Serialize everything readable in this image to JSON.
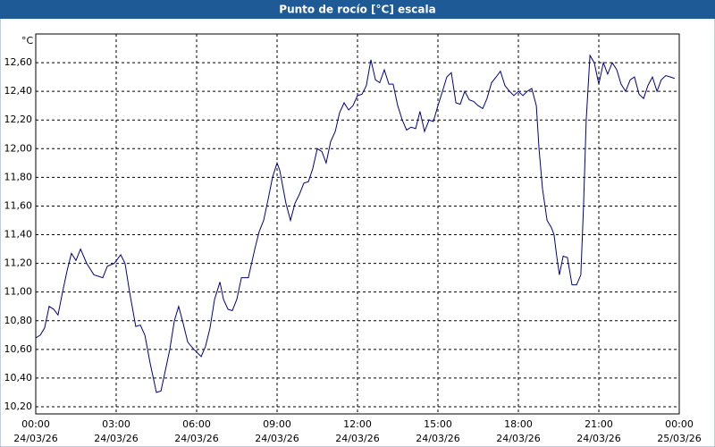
{
  "chart_data": {
    "type": "line",
    "title": "Punto de rocío [°C] escala",
    "y_unit": "°C",
    "xlim": [
      0,
      24
    ],
    "ylim": [
      10.15,
      12.8
    ],
    "grid": true,
    "xticks": [
      {
        "value": 0,
        "label": "00:00",
        "date": "24/03/26"
      },
      {
        "value": 3,
        "label": "03:00",
        "date": "24/03/26"
      },
      {
        "value": 6,
        "label": "06:00",
        "date": "24/03/26"
      },
      {
        "value": 9,
        "label": "09:00",
        "date": "24/03/26"
      },
      {
        "value": 12,
        "label": "12:00",
        "date": "24/03/26"
      },
      {
        "value": 15,
        "label": "15:00",
        "date": "24/03/26"
      },
      {
        "value": 18,
        "label": "18:00",
        "date": "24/03/26"
      },
      {
        "value": 21,
        "label": "21:00",
        "date": "24/03/26"
      },
      {
        "value": 24,
        "label": "00:00",
        "date": "25/03/26"
      }
    ],
    "yticks": [
      {
        "value": 10.2,
        "label": "10,20"
      },
      {
        "value": 10.4,
        "label": "10,40"
      },
      {
        "value": 10.6,
        "label": "10,60"
      },
      {
        "value": 10.8,
        "label": "10,80"
      },
      {
        "value": 11.0,
        "label": "11,00"
      },
      {
        "value": 11.2,
        "label": "11,20"
      },
      {
        "value": 11.4,
        "label": "11,40"
      },
      {
        "value": 11.6,
        "label": "11,60"
      },
      {
        "value": 11.8,
        "label": "11,80"
      },
      {
        "value": 12.0,
        "label": "12,00"
      },
      {
        "value": 12.2,
        "label": "12,20"
      },
      {
        "value": 12.4,
        "label": "12,40"
      },
      {
        "value": 12.6,
        "label": "12,60"
      }
    ],
    "x": [
      0,
      0.17,
      0.33,
      0.5,
      0.67,
      0.83,
      1,
      1.17,
      1.33,
      1.5,
      1.67,
      1.9,
      2.17,
      2.5,
      2.67,
      2.93,
      3.17,
      3.33,
      3.5,
      3.73,
      3.9,
      4.07,
      4.27,
      4.5,
      4.67,
      4.83,
      5,
      5.17,
      5.33,
      5.5,
      5.67,
      5.9,
      6.17,
      6.33,
      6.5,
      6.67,
      6.87,
      7,
      7.17,
      7.33,
      7.5,
      7.67,
      7.93,
      8.17,
      8.33,
      8.5,
      8.67,
      8.83,
      9,
      9.1,
      9.33,
      9.5,
      9.67,
      9.83,
      10,
      10.17,
      10.33,
      10.5,
      10.67,
      10.83,
      11,
      11.17,
      11.33,
      11.5,
      11.67,
      11.83,
      12,
      12.17,
      12.33,
      12.5,
      12.67,
      12.83,
      13,
      13.17,
      13.33,
      13.5,
      13.67,
      13.83,
      14,
      14.17,
      14.33,
      14.5,
      14.67,
      14.83,
      15,
      15.17,
      15.33,
      15.5,
      15.67,
      15.83,
      16,
      16.17,
      16.33,
      16.5,
      16.67,
      16.83,
      17,
      17.17,
      17.33,
      17.5,
      17.67,
      17.83,
      18,
      18.17,
      18.33,
      18.5,
      18.67,
      18.77,
      18.9,
      19.07,
      19.23,
      19.33,
      19.43,
      19.53,
      19.67,
      19.83,
      20,
      20.17,
      20.33,
      20.43,
      20.53,
      20.67,
      20.83,
      21,
      21.17,
      21.33,
      21.5,
      21.67,
      21.83,
      22,
      22.17,
      22.33,
      22.5,
      22.67,
      22.83,
      23,
      23.17,
      23.33,
      23.5,
      23.67,
      23.83
    ],
    "series": [
      {
        "color": "#00008b",
        "values": [
          10.68,
          10.7,
          10.75,
          10.9,
          10.88,
          10.84,
          11.0,
          11.15,
          11.27,
          11.22,
          11.3,
          11.2,
          11.12,
          11.1,
          11.18,
          11.2,
          11.26,
          11.2,
          11.0,
          10.76,
          10.77,
          10.7,
          10.5,
          10.3,
          10.31,
          10.45,
          10.6,
          10.8,
          10.9,
          10.78,
          10.65,
          10.6,
          10.55,
          10.62,
          10.75,
          10.95,
          11.07,
          10.95,
          10.88,
          10.87,
          10.95,
          11.1,
          11.1,
          11.3,
          11.42,
          11.5,
          11.65,
          11.8,
          11.9,
          11.85,
          11.62,
          11.5,
          11.62,
          11.68,
          11.76,
          11.77,
          11.86,
          12.0,
          11.98,
          11.9,
          12.05,
          12.12,
          12.25,
          12.32,
          12.27,
          12.3,
          12.37,
          12.38,
          12.44,
          12.62,
          12.48,
          12.46,
          12.55,
          12.45,
          12.45,
          12.3,
          12.2,
          12.13,
          12.15,
          12.14,
          12.26,
          12.12,
          12.2,
          12.19,
          12.3,
          12.4,
          12.5,
          12.53,
          12.32,
          12.31,
          12.4,
          12.34,
          12.33,
          12.3,
          12.28,
          12.35,
          12.46,
          12.5,
          12.54,
          12.44,
          12.4,
          12.37,
          12.4,
          12.37,
          12.4,
          12.42,
          12.3,
          12.0,
          11.72,
          11.5,
          11.45,
          11.4,
          11.25,
          11.12,
          11.25,
          11.24,
          11.05,
          11.05,
          11.12,
          11.6,
          12.2,
          12.65,
          12.6,
          12.45,
          12.6,
          12.52,
          12.6,
          12.55,
          12.45,
          12.4,
          12.48,
          12.5,
          12.38,
          12.35,
          12.44,
          12.5,
          12.4,
          12.48,
          12.51,
          12.5,
          12.49
        ]
      }
    ]
  }
}
